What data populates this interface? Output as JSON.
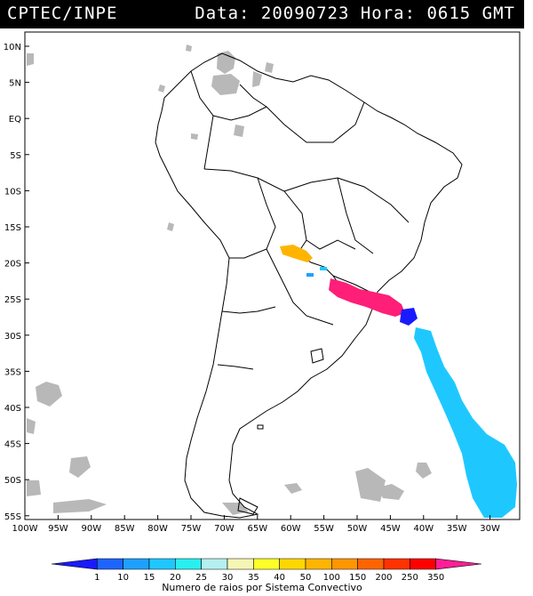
{
  "header": {
    "left": "CPTEC/INPE",
    "right": "Data: 20090723 Hora: 0615 GMT"
  },
  "lat_labels": [
    "10N",
    "5N",
    "EQ",
    "5S",
    "10S",
    "15S",
    "20S",
    "25S",
    "30S",
    "35S",
    "40S",
    "45S",
    "50S",
    "55S"
  ],
  "lon_labels": [
    "100W",
    "95W",
    "90W",
    "85W",
    "80W",
    "75W",
    "70W",
    "65W",
    "60W",
    "55W",
    "50W",
    "45W",
    "40W",
    "35W",
    "30W"
  ],
  "colorbar": {
    "title": "Numero de raios por Sistema Convectivo",
    "ticks": [
      "1",
      "10",
      "15",
      "20",
      "25",
      "30",
      "35",
      "40",
      "50",
      "100",
      "150",
      "200",
      "250",
      "350"
    ],
    "colors": [
      "#1a1aff",
      "#1e64ff",
      "#1ea0ff",
      "#1ec8ff",
      "#28f0f0",
      "#b4f0f0",
      "#f5f5b4",
      "#ffff28",
      "#ffd700",
      "#ffb400",
      "#ff9600",
      "#ff6400",
      "#ff3200",
      "#ff0000",
      "#ff1e96"
    ]
  }
}
